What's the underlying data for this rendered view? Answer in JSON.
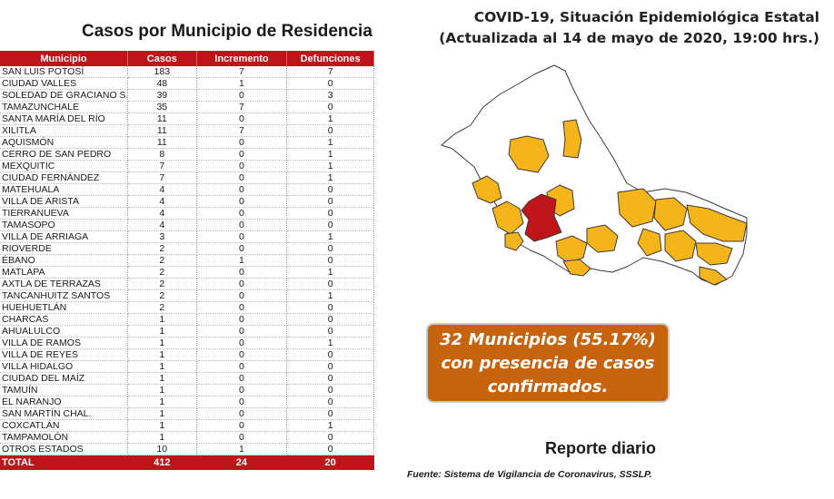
{
  "table": {
    "title": "Casos por Municipio  de Residencia",
    "headers": [
      "Municipio",
      "Casos",
      "Incremento",
      "Defunciones"
    ],
    "rows": [
      [
        "SAN LUIS POTOSÍ",
        "183",
        "7",
        "7"
      ],
      [
        "CIUDAD VALLES",
        "48",
        "1",
        "0"
      ],
      [
        "SOLEDAD DE GRACIANO S.",
        "39",
        "0",
        "3"
      ],
      [
        "TAMAZUNCHALE",
        "35",
        "7",
        "0"
      ],
      [
        "SANTA MARÍA DEL RÍO",
        "11",
        "0",
        "1"
      ],
      [
        "XILITLA",
        "11",
        "7",
        "0"
      ],
      [
        "AQUISMÓN",
        "11",
        "0",
        "1"
      ],
      [
        "CERRO DE SAN PEDRO",
        "8",
        "0",
        "1"
      ],
      [
        "MEXQUITIC",
        "7",
        "0",
        "1"
      ],
      [
        "CIUDAD FERNÁNDEZ",
        "7",
        "0",
        "1"
      ],
      [
        "MATEHUALA",
        "4",
        "0",
        "0"
      ],
      [
        "VILLA DE ARISTA",
        "4",
        "0",
        "0"
      ],
      [
        "TIERRANUEVA",
        "4",
        "0",
        "0"
      ],
      [
        "TAMASOPO",
        "4",
        "0",
        "0"
      ],
      [
        "VILLA DE ARRIAGA",
        "3",
        "0",
        "1"
      ],
      [
        "RIOVERDE",
        "2",
        "0",
        "0"
      ],
      [
        "ÉBANO",
        "2",
        "1",
        "0"
      ],
      [
        "MATLAPA",
        "2",
        "0",
        "1"
      ],
      [
        "AXTLA DE TERRAZAS",
        "2",
        "0",
        "0"
      ],
      [
        "TANCANHUITZ SANTOS",
        "2",
        "0",
        "1"
      ],
      [
        "HUEHUETLÁN",
        "2",
        "0",
        "0"
      ],
      [
        "CHARCAS",
        "1",
        "0",
        "0"
      ],
      [
        "AHUALULCO",
        "1",
        "0",
        "0"
      ],
      [
        "VILLA DE RAMOS",
        "1",
        "0",
        "1"
      ],
      [
        "VILLA DE REYES",
        "1",
        "0",
        "0"
      ],
      [
        "VILLA HIDALGO",
        "1",
        "0",
        "0"
      ],
      [
        "CIUDAD DEL MAÍZ",
        "1",
        "0",
        "0"
      ],
      [
        "TAMUÍN",
        "1",
        "0",
        "0"
      ],
      [
        "EL NARANJO",
        "1",
        "0",
        "0"
      ],
      [
        "SAN MARTÍN CHAL.",
        "1",
        "0",
        "0"
      ],
      [
        "COXCATLÁN",
        "1",
        "0",
        "1"
      ],
      [
        "TAMPAMOLÓN",
        "1",
        "0",
        "0"
      ],
      [
        "OTROS ESTADOS",
        "10",
        "1",
        "0"
      ]
    ],
    "total": [
      "TOTAL",
      "412",
      "24",
      "20"
    ]
  },
  "header": {
    "title_line1": "COVID-19, Situación Epidemiológica Estatal",
    "title_line2": "(Actualizada al 14 de mayo de 2020, 19:00 hrs.)"
  },
  "map": {
    "colors": {
      "highlight": "#c0141b",
      "cases": "#f4b41a",
      "none": "#ffffff",
      "border": "#3a3a3a"
    }
  },
  "callout": {
    "line1": "32 Municipios (55.17%)",
    "line2": "con presencia de casos",
    "line3": "confirmados."
  },
  "report_label": "Reporte diario",
  "source": "Fuente: Sistema de Vigilancia  de Coronavirus, SSSLP."
}
